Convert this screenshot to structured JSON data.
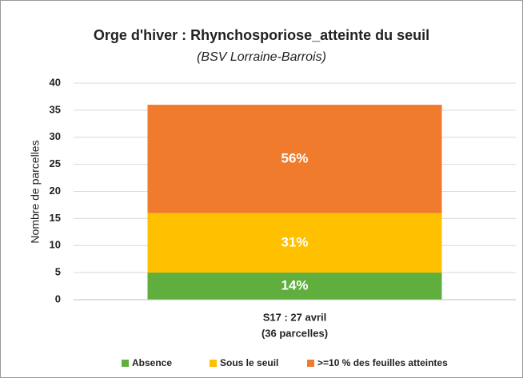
{
  "chart_data": {
    "type": "stacked_bar",
    "title": "Orge d'hiver : Rhynchosporiose_atteinte du seuil",
    "subtitle": "(BSV Lorraine-Barrois)",
    "y_label": "Nombre de parcelles",
    "categories": [
      [
        "S17 : 27 avril",
        "(36 parcelles)"
      ]
    ],
    "series": [
      {
        "name": "Absence",
        "color": "#5fae3e",
        "values": [
          5
        ],
        "share_labels": [
          "14%"
        ]
      },
      {
        "name": "Sous le seuil",
        "color": "#ffc000",
        "values": [
          11
        ],
        "share_labels": [
          "31%"
        ]
      },
      {
        "name": ">=10 % des feuilles atteintes",
        "color": "#f07b2c",
        "values": [
          20
        ],
        "share_labels": [
          "56%"
        ]
      }
    ],
    "ylim": [
      0,
      40
    ],
    "yticks": [
      0,
      5,
      10,
      15,
      20,
      25,
      30,
      35,
      40
    ],
    "grid": true,
    "legend": "bottom"
  }
}
